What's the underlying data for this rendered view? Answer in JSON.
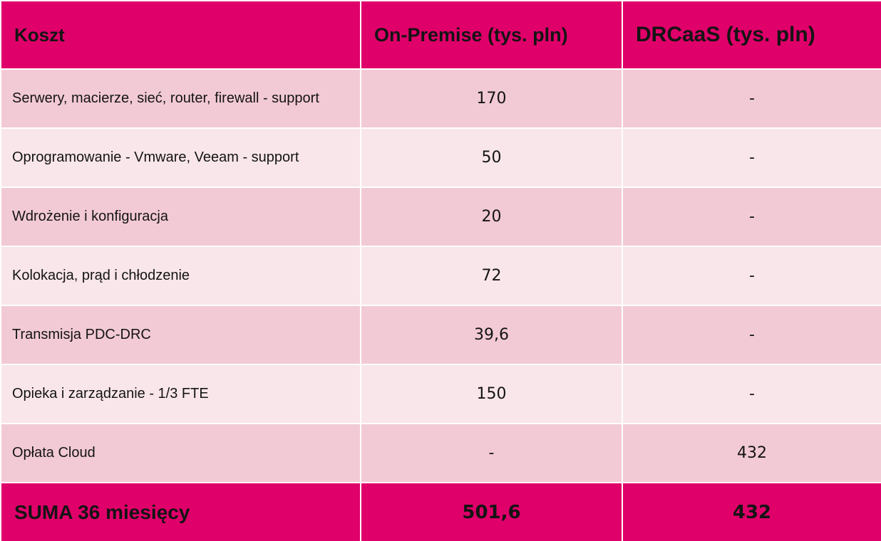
{
  "table": {
    "headers": [
      "Koszt",
      "On-Premise (tys. pln)",
      "DRCaaS (tys. pln)"
    ],
    "rows": [
      {
        "label": "Serwery, macierze, sieć, router, firewall - support",
        "on_premise": "170",
        "drcaas": "-"
      },
      {
        "label": "Oprogramowanie - Vmware, Veeam - support",
        "on_premise": "50",
        "drcaas": "-"
      },
      {
        "label": "Wdrożenie i konfiguracja",
        "on_premise": "20",
        "drcaas": "-"
      },
      {
        "label": "Kolokacja, prąd i chłodzenie",
        "on_premise": "72",
        "drcaas": "-"
      },
      {
        "label": "Transmisja PDC-DRC",
        "on_premise": "39,6",
        "drcaas": "-"
      },
      {
        "label": "Opieka i zarządzanie - 1/3 FTE",
        "on_premise": "150",
        "drcaas": "-"
      },
      {
        "label": "Opłata Cloud",
        "on_premise": "-",
        "drcaas": "432"
      }
    ],
    "total": {
      "label": "SUMA 36 miesięcy",
      "on_premise": "501,6",
      "drcaas": "432"
    }
  },
  "colors": {
    "header_bg": "#e0006a",
    "row_dark": "#f2cad5",
    "row_light": "#f9e6ea",
    "text": "#141414"
  }
}
